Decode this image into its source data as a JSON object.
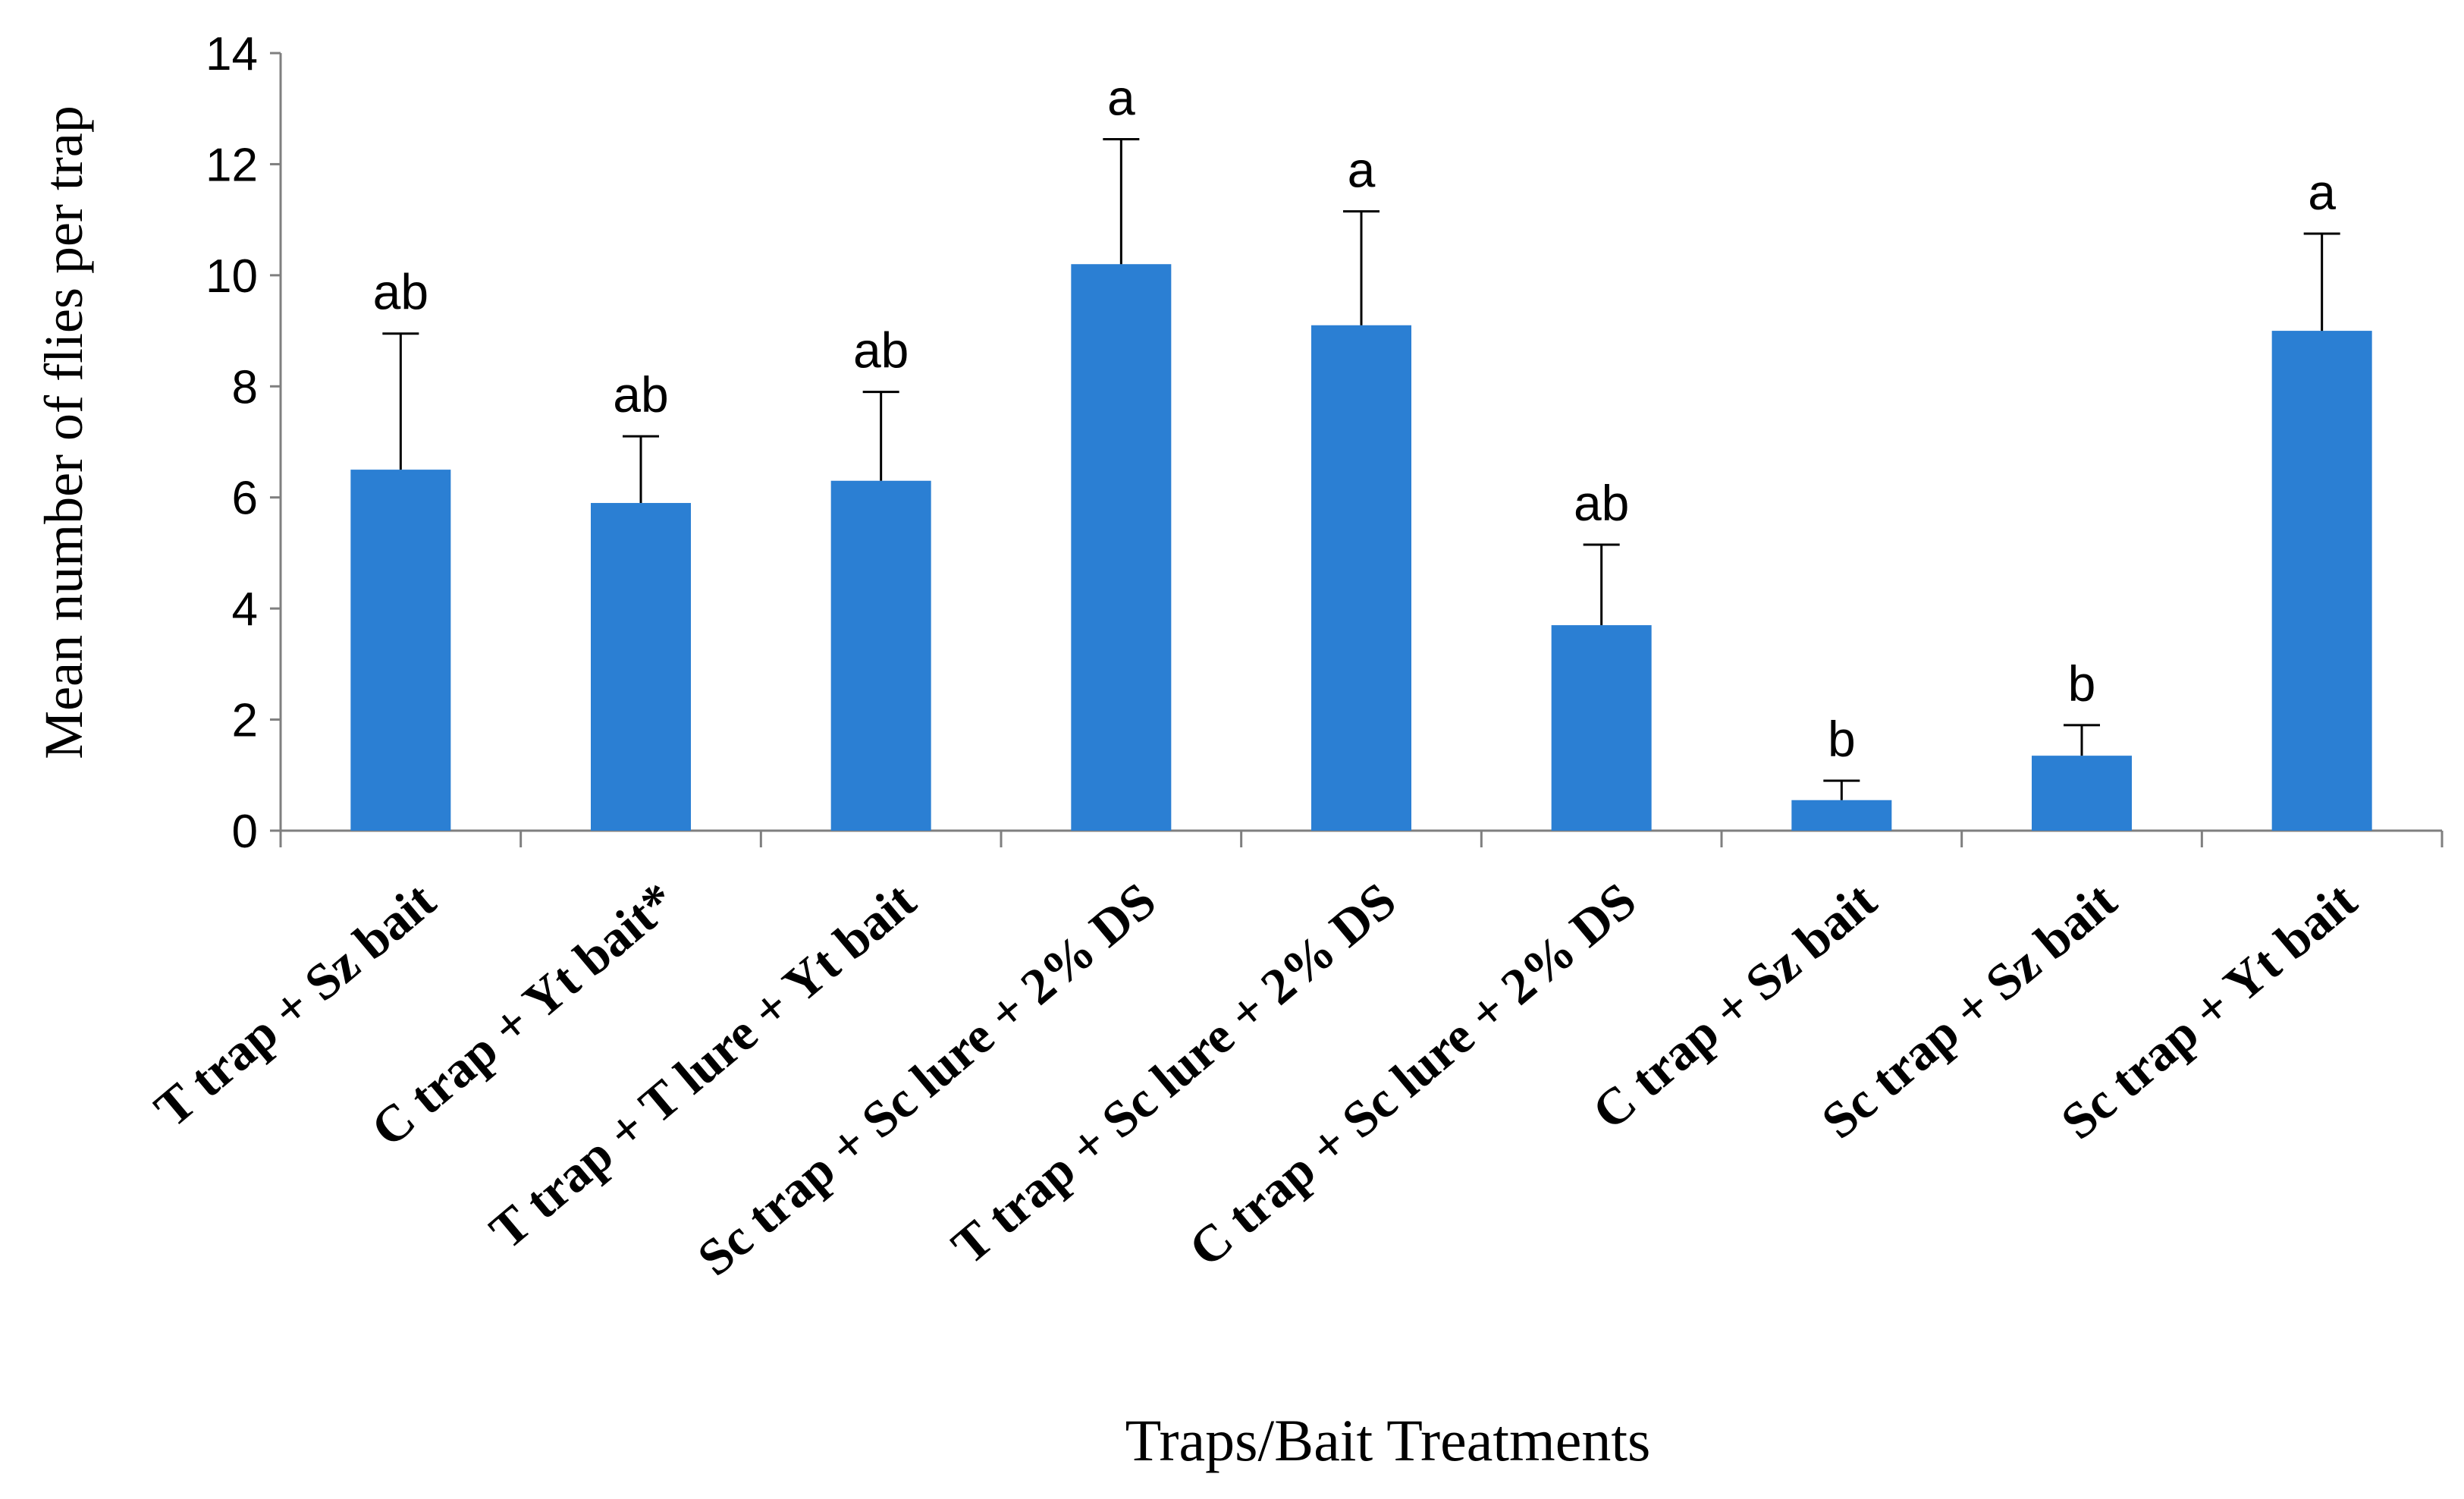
{
  "chart_data": {
    "type": "bar",
    "title": "",
    "xlabel": "Traps/Bait Treatments",
    "ylabel": "Mean number of flies per trap",
    "ylim": [
      0,
      14
    ],
    "yticks": [
      0,
      2,
      4,
      6,
      8,
      10,
      12,
      14
    ],
    "bar_color": "#2b7fd3",
    "categories": [
      "T trap + Sz bait",
      "C trap + Yt bait*",
      "T trap + T lure + Yt bait",
      "Sc trap + Sc lure + 2% DS",
      "T trap + Sc lure + 2% DS",
      "C trap + Sc lure + 2% DS",
      "C trap + Sz bait",
      "Sc trap + Sz bait",
      "Sc trap + Yt bait"
    ],
    "values": [
      6.5,
      5.9,
      6.3,
      10.2,
      9.1,
      3.7,
      0.55,
      1.35,
      9.0
    ],
    "errors": [
      2.45,
      1.2,
      1.6,
      2.25,
      2.05,
      1.45,
      0.35,
      0.55,
      1.75
    ],
    "significance": [
      "ab",
      "ab",
      "ab",
      "a",
      "a",
      "ab",
      "b",
      "b",
      "a"
    ],
    "grid": false,
    "legend": "none"
  }
}
